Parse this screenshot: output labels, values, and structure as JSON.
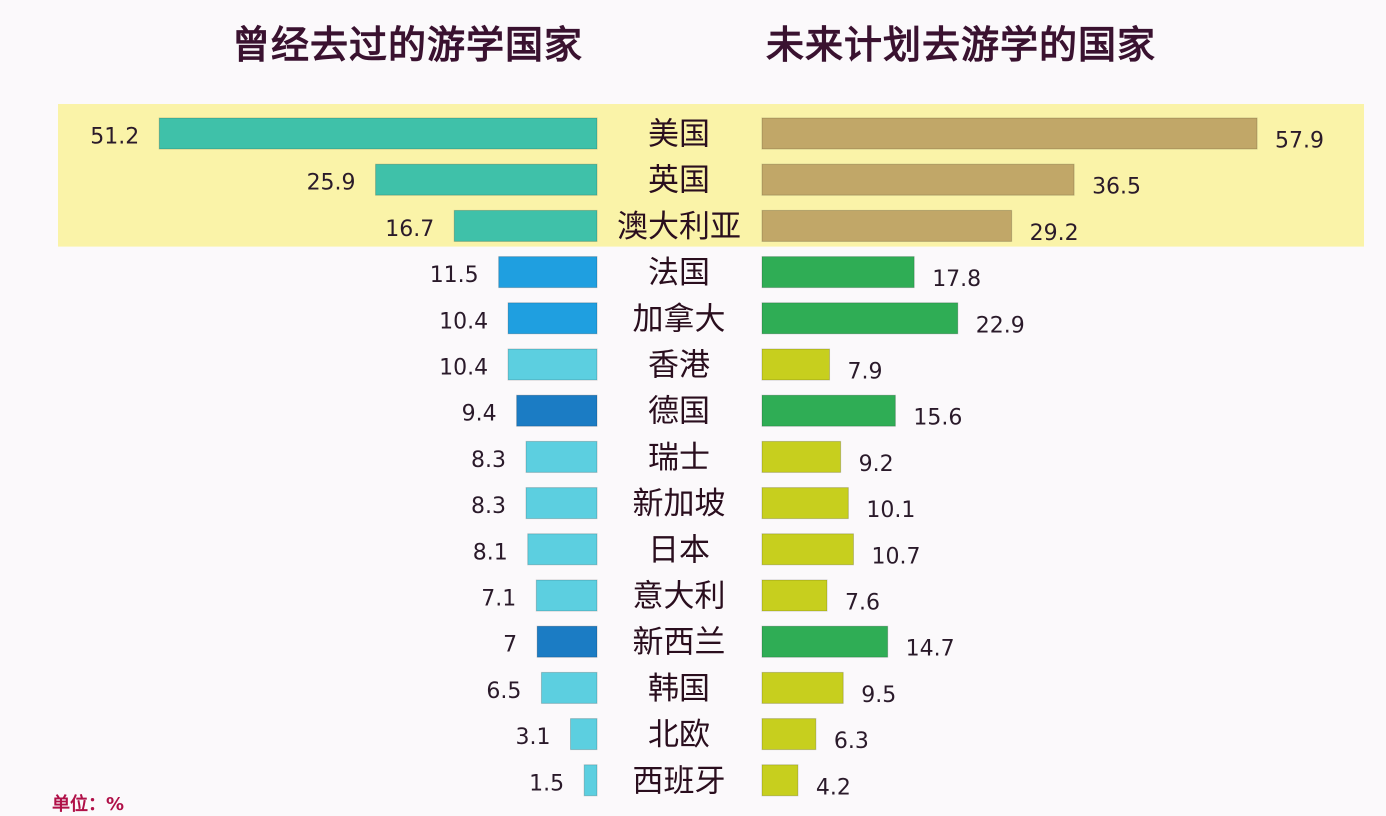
{
  "left_title": "曾经去过的游学国家",
  "right_title": "未来计划去游学的国家",
  "unit_label": "单位：%",
  "colors": {
    "highlight_band": "#faf3a8",
    "top_left": "#3fc1a9",
    "top_right": "#c1a768",
    "rest_right_green": "#2fad55",
    "rest_right_yellow": "#c7cf1e",
    "left_blue": "#1f9fe0",
    "left_dark_blue": "#1b7cc4",
    "left_light": "#5ccfe0"
  },
  "chart_data": {
    "type": "bar",
    "orientation": "horizontal-butterfly",
    "categories": [
      "美国",
      "英国",
      "澳大利亚",
      "法国",
      "加拿大",
      "香港",
      "德国",
      "瑞士",
      "新加坡",
      "日本",
      "意大利",
      "新西兰",
      "韩国",
      "北欧",
      "西班牙"
    ],
    "series": [
      {
        "name": "曾经去过的游学国家",
        "values": [
          51.2,
          25.9,
          16.7,
          11.5,
          10.4,
          10.4,
          9.4,
          8.3,
          8.3,
          8.1,
          7.1,
          7,
          6.5,
          3.1,
          1.5
        ]
      },
      {
        "name": "未来计划去游学的国家",
        "values": [
          57.9,
          36.5,
          29.2,
          17.8,
          22.9,
          7.9,
          15.6,
          9.2,
          10.1,
          10.7,
          7.6,
          14.7,
          9.5,
          6.3,
          4.2
        ]
      }
    ],
    "value_labels": {
      "left": [
        "51.2",
        "25.9",
        "16.7",
        "11.5",
        "10.4",
        "10.4",
        "9.4",
        "8.3",
        "8.3",
        "8.1",
        "7.1",
        "7",
        "6.5",
        "3.1",
        "1.5"
      ],
      "right": [
        "57.9",
        "36.5",
        "29.2",
        "17.8",
        "22.9",
        "7.9",
        "15.6",
        "9.2",
        "10.1",
        "10.7",
        "7.6",
        "14.7",
        "9.5",
        "6.3",
        "4.2"
      ]
    },
    "left_colors": [
      "top",
      "top",
      "top",
      "blue",
      "blue",
      "light",
      "dark",
      "light",
      "light",
      "light",
      "light",
      "dark",
      "light",
      "light",
      "light"
    ],
    "right_colors": [
      "top",
      "top",
      "top",
      "green",
      "green",
      "yellow",
      "green",
      "yellow",
      "yellow",
      "yellow",
      "yellow",
      "green",
      "yellow",
      "yellow",
      "yellow"
    ],
    "highlighted_categories": [
      "美国",
      "英国",
      "澳大利亚"
    ]
  }
}
